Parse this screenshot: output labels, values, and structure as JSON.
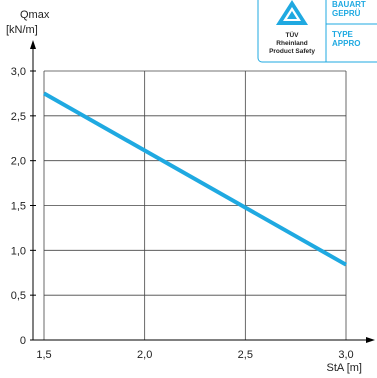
{
  "chart_data": {
    "type": "line",
    "x": [
      1.5,
      3.0
    ],
    "series": [
      {
        "values": [
          2.75,
          0.84
        ],
        "color": "#1fa9e1"
      }
    ],
    "xlabel": "StA [m]",
    "ylabel_line1": "Qmax",
    "ylabel_line2": "[kN/m]",
    "xticks": [
      "1,5",
      "2,0",
      "2,5",
      "3,0"
    ],
    "xtick_values": [
      1.5,
      2.0,
      2.5,
      3.0
    ],
    "yticks": [
      "0",
      "0,5",
      "1,0",
      "1,5",
      "2,0",
      "2,5",
      "3,0"
    ],
    "ytick_values": [
      0,
      0.5,
      1.0,
      1.5,
      2.0,
      2.5,
      3.0
    ],
    "xlim": [
      1.5,
      3.0
    ],
    "ylim": [
      0,
      3.0
    ],
    "grid": true
  },
  "badge": {
    "tuv_line1": "TÜV",
    "tuv_line2": "Rheinland",
    "tuv_line3": "Product Safety",
    "right_line1": "BAUART",
    "right_line2": "GEPRÜ",
    "right_line3": "TYPE",
    "right_line4": "APPRO",
    "accent": "#1fa9e1"
  }
}
